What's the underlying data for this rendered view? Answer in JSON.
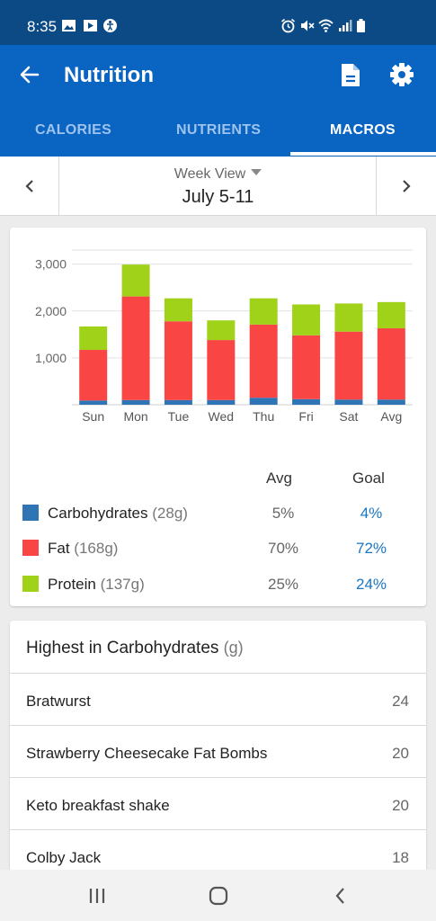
{
  "status_bar": {
    "time": "8:35",
    "left_icons": [
      "image-icon",
      "video-icon",
      "accessibility-icon"
    ],
    "right_icons": [
      "alarm-icon",
      "mute-icon",
      "wifi-icon",
      "signal-icon",
      "battery-icon"
    ]
  },
  "app_bar": {
    "title": "Nutrition",
    "icons": [
      "back-arrow-icon",
      "document-icon",
      "gear-icon"
    ]
  },
  "tabs": [
    {
      "label": "CALORIES",
      "active": false
    },
    {
      "label": "NUTRIENTS",
      "active": false
    },
    {
      "label": "MACROS",
      "active": true
    }
  ],
  "week": {
    "view_label": "Week View",
    "range": "July 5-11"
  },
  "chart_data": {
    "type": "bar",
    "stacked": true,
    "categories": [
      "Sun",
      "Mon",
      "Tue",
      "Wed",
      "Thu",
      "Fri",
      "Sat",
      "Avg"
    ],
    "ylim": [
      0,
      3000
    ],
    "yticks": [
      1000,
      2000,
      3000
    ],
    "ytick_labels": [
      "1,000",
      "2,000",
      "3,000"
    ],
    "grid": true,
    "series": [
      {
        "name": "Carbohydrates",
        "color": "#2f74b5",
        "values": [
          90,
          100,
          100,
          100,
          150,
          120,
          110,
          110
        ]
      },
      {
        "name": "Fat",
        "color": "#fa4545",
        "values": [
          1080,
          2210,
          1680,
          1280,
          1560,
          1360,
          1450,
          1520
        ]
      },
      {
        "name": "Protein",
        "color": "#9fd219",
        "values": [
          500,
          680,
          490,
          420,
          560,
          660,
          600,
          560
        ]
      }
    ]
  },
  "macros": {
    "avg_header": "Avg",
    "goal_header": "Goal",
    "rows": [
      {
        "name": "Carbohydrates",
        "grams": "(28g)",
        "avg": "5%",
        "goal": "4%",
        "color": "#2f74b5"
      },
      {
        "name": "Fat",
        "grams": "(168g)",
        "avg": "70%",
        "goal": "72%",
        "color": "#fa4545"
      },
      {
        "name": "Protein",
        "grams": "(137g)",
        "avg": "25%",
        "goal": "24%",
        "color": "#9fd219"
      }
    ]
  },
  "highest": {
    "title": "Highest in Carbohydrates",
    "unit": "(g)",
    "items": [
      {
        "name": "Bratwurst",
        "value": "24"
      },
      {
        "name": "Strawberry Cheesecake Fat Bombs",
        "value": "20"
      },
      {
        "name": "Keto breakfast shake",
        "value": "20"
      },
      {
        "name": "Colby Jack",
        "value": "18"
      }
    ]
  },
  "nav": {
    "icons": [
      "recent-apps-icon",
      "home-icon",
      "back-icon"
    ]
  },
  "colors": {
    "status_bar": "#0c4a86",
    "app_bar": "#0a64c2",
    "inactive_tab": "#9dc3ee",
    "goal_text": "#1976c2"
  }
}
